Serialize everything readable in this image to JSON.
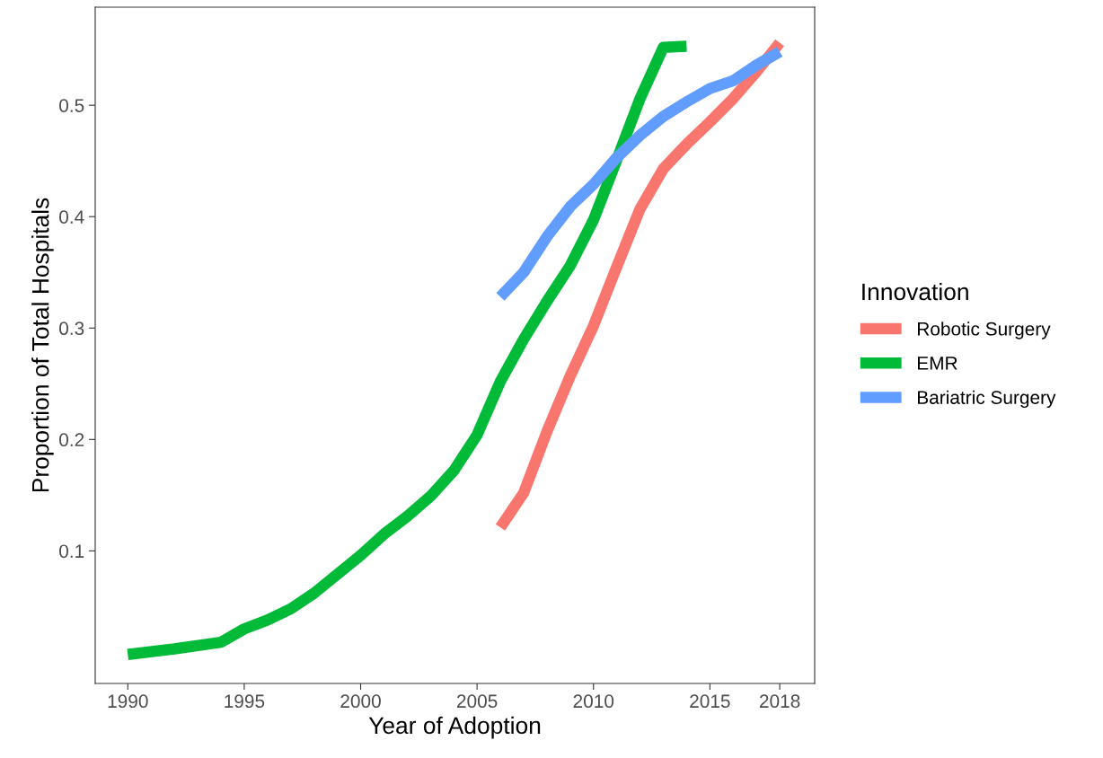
{
  "chart_data": {
    "type": "line",
    "xlabel": "Year of Adoption",
    "ylabel": "Proportion of Total Hospitals",
    "legend_title": "Innovation",
    "legend": "right",
    "xlim": [
      1988.6,
      2019.5
    ],
    "xticks": [
      1990,
      1995,
      2000,
      2005,
      2010,
      2015,
      2018
    ],
    "ylim": [
      -0.019,
      0.588
    ],
    "yticks": [
      0.1,
      0.2,
      0.3,
      0.4,
      0.5
    ],
    "grid": false,
    "series": [
      {
        "name": "Robotic Surgery",
        "color": "#f8766d",
        "x": [
          2006,
          2007,
          2008,
          2009,
          2010,
          2011,
          2012,
          2013,
          2014,
          2015,
          2016,
          2017,
          2018
        ],
        "values": [
          0.121,
          0.152,
          0.207,
          0.257,
          0.302,
          0.355,
          0.407,
          0.443,
          0.465,
          0.485,
          0.506,
          0.53,
          0.556
        ]
      },
      {
        "name": "EMR",
        "color": "#00ba38",
        "x": [
          1990,
          1992,
          1994,
          1995,
          1996,
          1997,
          1998,
          2000,
          2001,
          2002,
          2003,
          2004,
          2005,
          2006,
          2007,
          2008,
          2009,
          2010,
          2011,
          2012,
          2013,
          2014
        ],
        "values": [
          0.007,
          0.012,
          0.018,
          0.03,
          0.038,
          0.048,
          0.062,
          0.096,
          0.115,
          0.131,
          0.149,
          0.172,
          0.204,
          0.252,
          0.29,
          0.324,
          0.356,
          0.397,
          0.451,
          0.506,
          0.552,
          0.553
        ]
      },
      {
        "name": "Bariatric Surgery",
        "color": "#619cff",
        "x": [
          2006,
          2007,
          2008,
          2009,
          2010,
          2011,
          2012,
          2013,
          2014,
          2015,
          2016,
          2017,
          2018
        ],
        "values": [
          0.328,
          0.35,
          0.382,
          0.409,
          0.429,
          0.453,
          0.473,
          0.49,
          0.503,
          0.515,
          0.522,
          0.536,
          0.548
        ]
      }
    ]
  }
}
